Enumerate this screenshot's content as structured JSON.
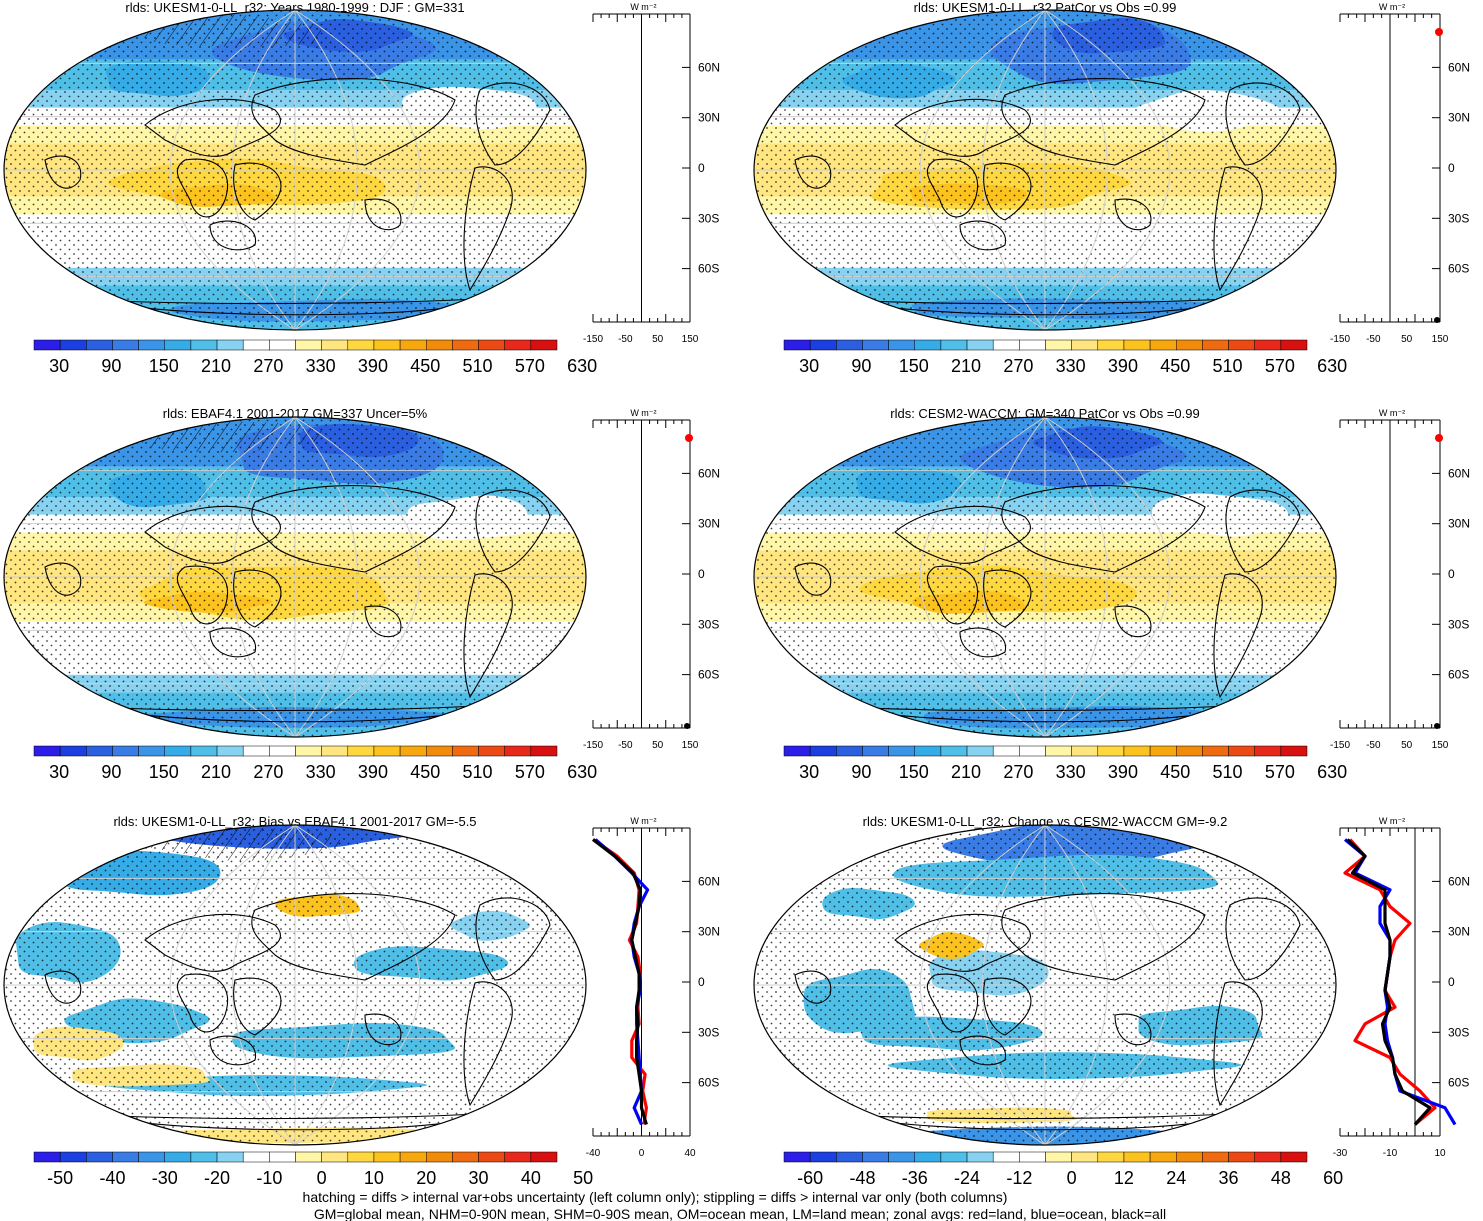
{
  "footer": {
    "line1": "hatching = diffs > internal var+obs uncertainty (left column only); stippling = diffs > internal var only (both columns)",
    "line2": "GM=global mean, NHM=0-90N mean, SHM=0-90S mean, OM=ocean mean, LM=land mean; zonal avgs: red=land, blue=ocean, black=all"
  },
  "colors": {
    "land_zonal": "#ff0000",
    "ocean_zonal": "#0000ff",
    "all_zonal": "#000000",
    "palette": [
      "#2a1ee8",
      "#1b3fe0",
      "#2a5fe0",
      "#3a7ce6",
      "#3a94e8",
      "#35ace8",
      "#4fbfe8",
      "#86d2f0",
      "#ffffff",
      "#ffffff",
      "#fff6a8",
      "#ffe680",
      "#ffd840",
      "#fcc21e",
      "#f7a80e",
      "#f28a0a",
      "#ef6a10",
      "#ec4a14",
      "#e8281a",
      "#d81010"
    ]
  },
  "panels": [
    {
      "id": "p1",
      "title": "rlds: UKESM1-0-LL_r32: Years 1980-1999 : DJF : GM=331",
      "colorbar_labels": [
        "30",
        "90",
        "150",
        "210",
        "270",
        "330",
        "390",
        "450",
        "510",
        "570",
        "630"
      ],
      "zonal_ticks": [
        "-150",
        "-50",
        "50",
        "150"
      ],
      "zonal_unit": "W m⁻²",
      "lat_labels": [
        "60N",
        "30N",
        "0",
        "30S",
        "60S"
      ]
    },
    {
      "id": "p2",
      "title": "rlds: UKESM1-0-LL_r32 PatCor vs Obs =0.99",
      "colorbar_labels": [
        "30",
        "90",
        "150",
        "210",
        "270",
        "330",
        "390",
        "450",
        "510",
        "570",
        "630"
      ],
      "zonal_ticks": [
        "-150",
        "-50",
        "50",
        "150"
      ],
      "zonal_unit": "W m⁻²",
      "lat_labels": [
        "60N",
        "30N",
        "0",
        "30S",
        "60S"
      ]
    },
    {
      "id": "p3",
      "title": "rlds: EBAF4.1 2001-2017 GM=337 Uncer=5%",
      "colorbar_labels": [
        "30",
        "90",
        "150",
        "210",
        "270",
        "330",
        "390",
        "450",
        "510",
        "570",
        "630"
      ],
      "zonal_ticks": [
        "-150",
        "-50",
        "50",
        "150"
      ],
      "zonal_unit": "W m⁻²",
      "lat_labels": [
        "60N",
        "30N",
        "0",
        "30S",
        "60S"
      ]
    },
    {
      "id": "p4",
      "title": "rlds: CESM2-WACCM: GM=340 PatCor vs Obs =0.99",
      "colorbar_labels": [
        "30",
        "90",
        "150",
        "210",
        "270",
        "330",
        "390",
        "450",
        "510",
        "570",
        "630"
      ],
      "zonal_ticks": [
        "-150",
        "-50",
        "50",
        "150"
      ],
      "zonal_unit": "W m⁻²",
      "lat_labels": [
        "60N",
        "30N",
        "0",
        "30S",
        "60S"
      ]
    },
    {
      "id": "p5",
      "title": "rlds: UKESM1-0-LL_r32: Bias vs EBAF4.1 2001-2017 GM=-5.5",
      "colorbar_labels": [
        "-50",
        "-40",
        "-30",
        "-20",
        "-10",
        "0",
        "10",
        "20",
        "30",
        "40",
        "50"
      ],
      "zonal_ticks": [
        "-40",
        "0",
        "40"
      ],
      "zonal_unit": "W m⁻²",
      "lat_labels": [
        "60N",
        "30N",
        "0",
        "30S",
        "60S"
      ]
    },
    {
      "id": "p6",
      "title": "rlds: UKESM1-0-LL_r32: Change vs CESM2-WACCM GM=-9.2",
      "colorbar_labels": [
        "-60",
        "-48",
        "-36",
        "-24",
        "-12",
        "0",
        "12",
        "24",
        "36",
        "48",
        "60"
      ],
      "zonal_ticks": [
        "-30",
        "-10",
        "10"
      ],
      "zonal_unit": "W m⁻²",
      "lat_labels": [
        "60N",
        "30N",
        "0",
        "30S",
        "60S"
      ]
    }
  ],
  "chart_data": [
    {
      "type": "heatmap",
      "panel": "p1",
      "title": "rlds: UKESM1-0-LL_r32: Years 1980-1999 : DJF : GM=331",
      "levels": [
        30,
        90,
        150,
        210,
        270,
        330,
        390,
        450,
        510,
        570,
        630
      ],
      "zonal_profile": {
        "xlim": [
          -150,
          150
        ],
        "lat": [
          90,
          -90
        ],
        "series": [
          {
            "name": "land",
            "values": []
          }
        ]
      }
    },
    {
      "type": "heatmap",
      "panel": "p2",
      "title": "rlds: UKESM1-0-LL_r32 PatCor vs Obs =0.99",
      "levels": [
        30,
        90,
        150,
        210,
        270,
        330,
        390,
        450,
        510,
        570,
        630
      ],
      "zonal_profile": {
        "xlim": [
          -150,
          150
        ]
      }
    },
    {
      "type": "heatmap",
      "panel": "p3",
      "title": "rlds: EBAF4.1 2001-2017 GM=337 Uncer=5%",
      "levels": [
        30,
        90,
        150,
        210,
        270,
        330,
        390,
        450,
        510,
        570,
        630
      ],
      "zonal_profile": {
        "xlim": [
          -150,
          150
        ]
      }
    },
    {
      "type": "heatmap",
      "panel": "p4",
      "title": "rlds: CESM2-WACCM: GM=340 PatCor vs Obs =0.99",
      "levels": [
        30,
        90,
        150,
        210,
        270,
        330,
        390,
        450,
        510,
        570,
        630
      ],
      "zonal_profile": {
        "xlim": [
          -150,
          150
        ]
      }
    },
    {
      "type": "line",
      "panel": "p5",
      "title": "rlds: UKESM1-0-LL_r32: Bias vs EBAF4.1 2001-2017 GM=-5.5",
      "levels": [
        -50,
        -40,
        -30,
        -20,
        -10,
        0,
        10,
        20,
        30,
        40,
        50
      ],
      "zonal_profile": {
        "xlim": [
          -40,
          40
        ],
        "lat": [
          85,
          75,
          65,
          55,
          45,
          35,
          25,
          15,
          5,
          -5,
          -15,
          -25,
          -35,
          -45,
          -55,
          -65,
          -75,
          -85
        ],
        "series": [
          {
            "name": "land",
            "color": "#ff0000",
            "values": [
              -40,
              -20,
              -6,
              -2,
              -3,
              -4,
              -10,
              -3,
              -1,
              -2,
              -3,
              -2,
              -8,
              -8,
              3,
              1,
              4,
              2
            ]
          },
          {
            "name": "ocean",
            "color": "#0000ff",
            "values": [
              -38,
              -22,
              -8,
              5,
              -2,
              -6,
              -8,
              -6,
              -2,
              -1,
              -4,
              -4,
              -3,
              -2,
              -1,
              0,
              -6,
              0
            ]
          },
          {
            "name": "all",
            "color": "#000000",
            "values": [
              -40,
              -22,
              -7,
              -1,
              -2,
              -5,
              -8,
              -5,
              -2,
              -2,
              -4,
              -3,
              -4,
              -4,
              -2,
              0,
              0,
              4
            ]
          }
        ]
      }
    },
    {
      "type": "line",
      "panel": "p6",
      "title": "rlds: UKESM1-0-LL_r32: Change vs CESM2-WACCM GM=-9.2",
      "levels": [
        -60,
        -48,
        -36,
        -24,
        -12,
        0,
        12,
        24,
        36,
        48,
        60
      ],
      "zonal_profile": {
        "xlim": [
          -30,
          10
        ],
        "lat": [
          85,
          75,
          65,
          55,
          45,
          35,
          25,
          15,
          5,
          -5,
          -15,
          -25,
          -35,
          -45,
          -55,
          -65,
          -75,
          -85
        ],
        "series": [
          {
            "name": "land",
            "color": "#ff0000",
            "values": [
              -26,
              -20,
              -28,
              -14,
              -10,
              -2,
              -8,
              -10,
              -11,
              -12,
              -8,
              -20,
              -24,
              -10,
              -6,
              2,
              8,
              0
            ]
          },
          {
            "name": "ocean",
            "color": "#0000ff",
            "values": [
              -28,
              -20,
              -24,
              -10,
              -14,
              -14,
              -10,
              -10,
              -11,
              -12,
              -11,
              -12,
              -11,
              -9,
              -8,
              -6,
              12,
              16
            ]
          },
          {
            "name": "all",
            "color": "#000000",
            "values": [
              -27,
              -20,
              -25,
              -12,
              -12,
              -12,
              -10,
              -10,
              -11,
              -12,
              -10,
              -13,
              -12,
              -9,
              -8,
              -5,
              6,
              0
            ]
          }
        ]
      }
    }
  ]
}
